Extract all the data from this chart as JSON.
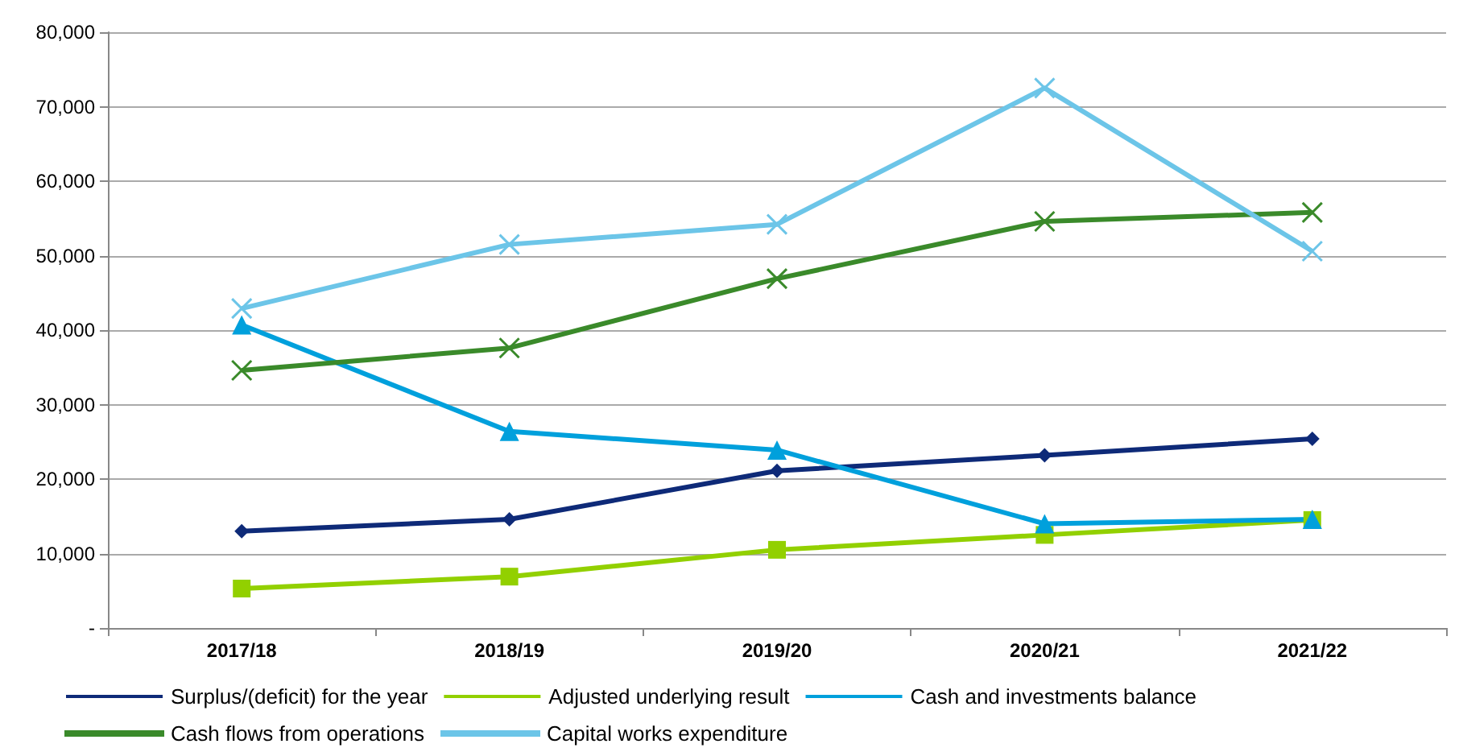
{
  "chart_data": {
    "type": "line",
    "categories": [
      "2017/18",
      "2018/19",
      "2019/20",
      "2020/21",
      "2021/22"
    ],
    "ylim": [
      0,
      80000
    ],
    "yticks": [
      {
        "value": 0,
        "label": "-"
      },
      {
        "value": 10000,
        "label": "10,000"
      },
      {
        "value": 20000,
        "label": "20,000"
      },
      {
        "value": 30000,
        "label": "30,000"
      },
      {
        "value": 40000,
        "label": "40,000"
      },
      {
        "value": 50000,
        "label": "50,000"
      },
      {
        "value": 60000,
        "label": "60,000"
      },
      {
        "value": 70000,
        "label": "70,000"
      },
      {
        "value": 80000,
        "label": "80,000"
      }
    ],
    "grid": "y",
    "legend": "bottom",
    "series": [
      {
        "name": "Surplus/(deficit) for the year",
        "color": "#0e2a78",
        "marker": "diamond",
        "values": [
          13000,
          14600,
          21100,
          23200,
          25400
        ]
      },
      {
        "name": "Adjusted underlying result",
        "color": "#92d000",
        "marker": "square",
        "values": [
          5300,
          6900,
          10500,
          12500,
          14500
        ]
      },
      {
        "name": "Cash and investments balance",
        "color": "#00a0dc",
        "marker": "triangle",
        "values": [
          40700,
          26400,
          23900,
          14000,
          14600
        ]
      },
      {
        "name": "Cash flows from operations",
        "color": "#3a8a2a",
        "marker": "cross",
        "values": [
          34600,
          37600,
          46900,
          54600,
          55800
        ]
      },
      {
        "name": "Capital works expenditure",
        "color": "#6cc5e8",
        "marker": "cross",
        "values": [
          42900,
          51500,
          54200,
          72500,
          50600
        ]
      }
    ]
  }
}
